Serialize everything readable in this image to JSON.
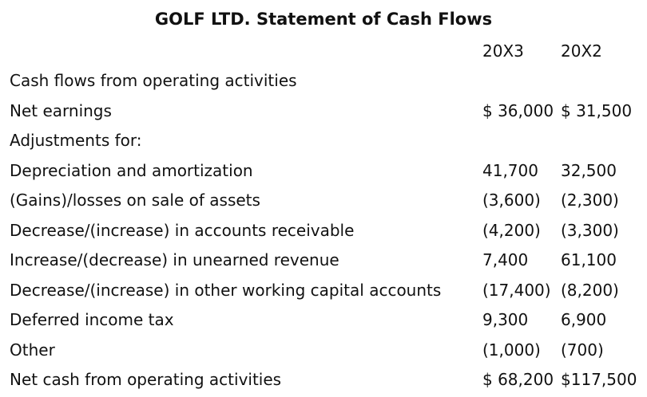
{
  "title": "GOLF LTD. Statement of Cash Flows",
  "columns": [
    "20X3",
    "20X2"
  ],
  "rows": [
    {
      "label": "Cash flows from operating activities",
      "y20X3": "",
      "y20X2": ""
    },
    {
      "label": "Net earnings",
      "y20X3": "$ 36,000",
      "y20X2": "$ 31,500"
    },
    {
      "label": "Adjustments for:",
      "y20X3": "",
      "y20X2": ""
    },
    {
      "label": "Depreciation and amortization",
      "y20X3": "41,700",
      "y20X2": "32,500"
    },
    {
      "label": "(Gains)/losses on sale of assets",
      "y20X3": "(3,600)",
      "y20X2": "(2,300)"
    },
    {
      "label": "Decrease/(increase) in accounts receivable",
      "y20X3": "(4,200)",
      "y20X2": "(3,300)"
    },
    {
      "label": "Increase/(decrease) in unearned revenue",
      "y20X3": "7,400",
      "y20X2": "61,100"
    },
    {
      "label": "Decrease/(increase) in other working capital accounts",
      "y20X3": "(17,400)",
      "y20X2": "(8,200)"
    },
    {
      "label": "Deferred income tax",
      "y20X3": "9,300",
      "y20X2": "6,900"
    },
    {
      "label": "Other",
      "y20X3": "(1,000)",
      "y20X2": "(700)"
    },
    {
      "label": "Net cash from operating activities",
      "y20X3": "$ 68,200",
      "y20X2": "$117,500"
    }
  ]
}
